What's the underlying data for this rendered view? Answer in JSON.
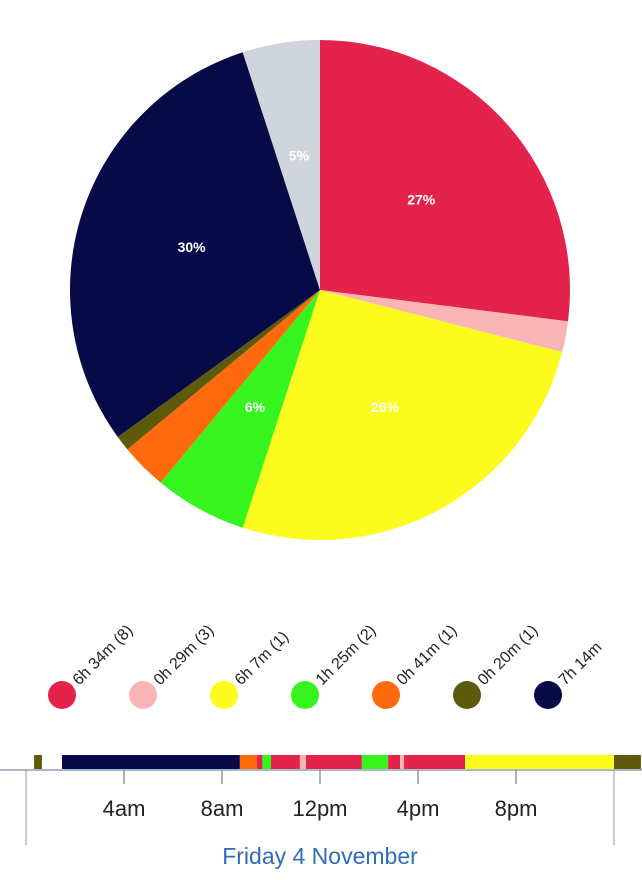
{
  "chart_data": {
    "type": "pie",
    "categories": [
      "6h 34m (8)",
      "0h 29m (3)",
      "6h 7m (1)",
      "1h 25m (2)",
      "0h 41m (1)",
      "0h 20m (1)",
      "7h 14m",
      null
    ],
    "values": [
      27,
      2,
      26,
      6,
      3,
      1,
      30,
      5
    ],
    "value_labels": [
      "27%",
      null,
      "26%",
      "6%",
      null,
      null,
      "30%",
      "5%"
    ],
    "colors": [
      "#e3234b",
      "#f9b5b5",
      "#fbfb1e",
      "#36f51e",
      "#ff6a0e",
      "#5e5a0c",
      "#060a46",
      "#d0d4dc"
    ]
  },
  "timeline": {
    "title": "Friday 4 November",
    "xlim": [
      0,
      24
    ],
    "xticks": [
      {
        "value": 4,
        "label": "4am"
      },
      {
        "value": 8,
        "label": "8am"
      },
      {
        "value": 12,
        "label": "12pm"
      },
      {
        "value": 16,
        "label": "4pm"
      },
      {
        "value": 20,
        "label": "8pm"
      }
    ],
    "segments": [
      {
        "start": 0.33,
        "end": 0.65,
        "color": "#5e5a0c"
      },
      {
        "start": 1.47,
        "end": 8.73,
        "color": "#060a46"
      },
      {
        "start": 8.73,
        "end": 9.43,
        "color": "#ff6a0e"
      },
      {
        "start": 9.43,
        "end": 9.65,
        "color": "#e3234b"
      },
      {
        "start": 9.65,
        "end": 10.0,
        "color": "#36f51e"
      },
      {
        "start": 10.0,
        "end": 11.18,
        "color": "#e3234b"
      },
      {
        "start": 11.18,
        "end": 11.43,
        "color": "#f9b5b5"
      },
      {
        "start": 11.43,
        "end": 13.71,
        "color": "#e3234b"
      },
      {
        "start": 13.71,
        "end": 14.78,
        "color": "#36f51e"
      },
      {
        "start": 14.78,
        "end": 15.27,
        "color": "#e3234b"
      },
      {
        "start": 15.27,
        "end": 15.43,
        "color": "#f9b5b5"
      },
      {
        "start": 15.43,
        "end": 17.92,
        "color": "#e3234b"
      },
      {
        "start": 17.92,
        "end": 24.0,
        "color": "#fbfb1e"
      },
      {
        "start": 24.0,
        "end": 25.1,
        "color": "#5e5a0c"
      }
    ]
  }
}
